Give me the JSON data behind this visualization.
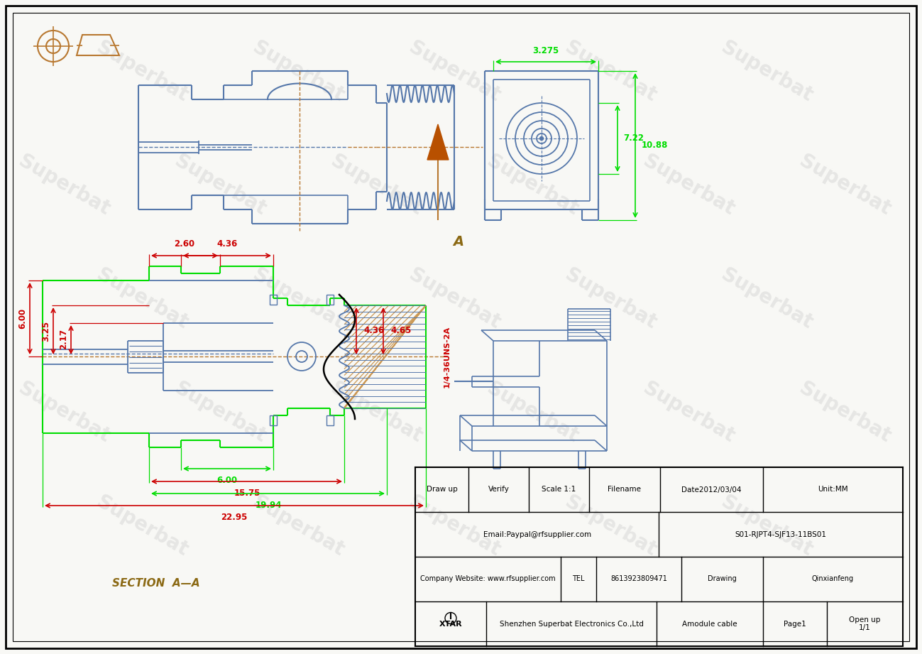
{
  "bg_color": "#f8f8f5",
  "drawing_color": "#5577aa",
  "dim_color": "#00dd00",
  "red_dim_color": "#cc0000",
  "orange_color": "#b87830",
  "watermark_color": "#cccccc",
  "section_label": "SECTION  A—A",
  "table_row1": [
    "Draw up",
    "Verify",
    "Scale 1:1",
    "Filename",
    "Date2012/03/04",
    "Unit:MM"
  ],
  "table_row2_left": "Email:Paypal@rfsupplier.com",
  "table_row2_right": "S01-RJPT4-SJF13-11BS01",
  "table_row3_left": "Company Website: www.rfsupplier.com",
  "table_row3_tel": "TEL",
  "table_row3_num": "8613923809471",
  "table_row3_draw": "Drawing",
  "table_row3_name": "Qinxianfeng",
  "table_row4_company": "Shenzhen Superbat Electronics Co.,Ltd",
  "table_row4_module": "Amodule cable",
  "table_row4_page": "Page1",
  "table_row4_openup": "Open up\n1/1",
  "watermark_text": "Superbat"
}
